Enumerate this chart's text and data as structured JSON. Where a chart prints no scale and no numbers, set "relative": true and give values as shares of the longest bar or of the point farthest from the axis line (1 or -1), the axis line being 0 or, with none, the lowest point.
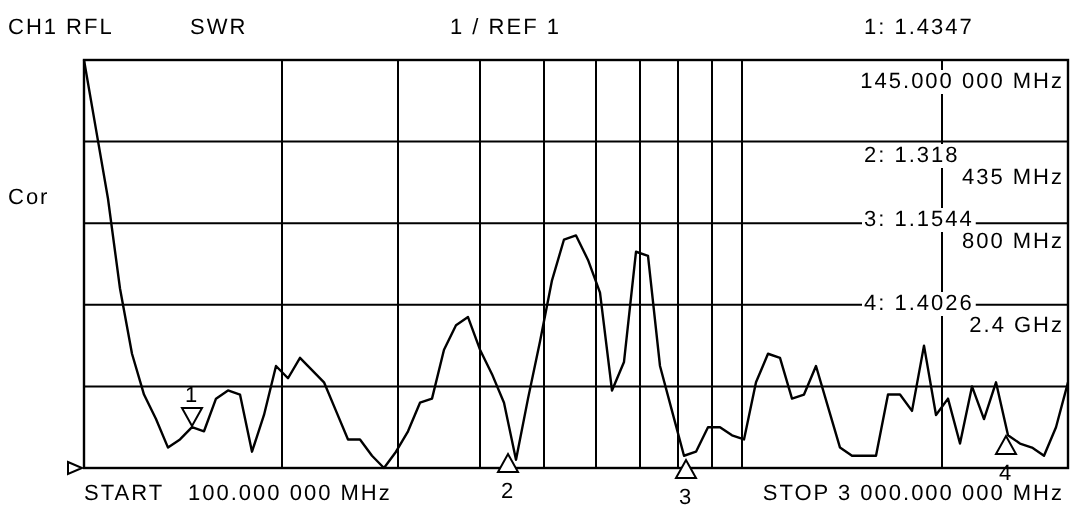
{
  "chart_data": {
    "type": "line",
    "title": "CH1 RFL",
    "subtitle": "SWR",
    "relative": true,
    "grid": true,
    "categories": [
      null,
      null,
      null,
      null,
      null,
      null,
      null,
      null,
      null,
      null,
      null,
      null,
      null,
      null,
      null,
      null,
      null,
      null,
      null,
      null,
      null,
      null,
      null,
      null,
      null,
      null,
      null,
      null,
      null,
      null,
      null,
      null,
      null,
      null,
      null,
      null,
      null,
      null,
      null,
      null,
      null,
      null,
      null,
      null,
      null,
      null,
      null,
      null,
      null,
      null,
      null,
      null,
      null,
      null,
      null,
      null,
      null,
      null,
      null,
      null,
      null,
      null,
      null,
      null,
      null,
      null,
      null,
      null,
      null,
      null,
      null,
      null,
      null,
      null,
      null,
      null,
      null,
      null,
      null,
      null,
      null,
      null,
      null
    ],
    "series": [
      {
        "color": "#000000",
        "values": [
          1.0,
          0.83,
          0.66,
          0.44,
          0.28,
          0.18,
          0.12,
          0.05,
          0.07,
          0.1,
          0.09,
          0.17,
          0.19,
          0.18,
          0.04,
          0.13,
          0.25,
          0.22,
          0.27,
          0.24,
          0.21,
          0.14,
          0.07,
          0.07,
          0.03,
          0.0,
          0.04,
          0.09,
          0.16,
          0.17,
          0.29,
          0.35,
          0.37,
          0.29,
          0.23,
          0.16,
          0.02,
          0.17,
          0.31,
          0.46,
          0.56,
          0.57,
          0.51,
          0.43,
          0.19,
          0.26,
          0.53,
          0.52,
          0.25,
          0.14,
          0.03,
          0.04,
          0.1,
          0.1,
          0.08,
          0.07,
          0.21,
          0.28,
          0.27,
          0.17,
          0.18,
          0.25,
          0.15,
          0.05,
          0.03,
          0.03,
          0.03,
          0.18,
          0.18,
          0.14,
          0.3,
          0.13,
          0.17,
          0.06,
          0.2,
          0.12,
          0.21,
          0.08,
          0.06,
          0.05,
          0.03,
          0.1,
          0.21
        ]
      }
    ],
    "annotations": [
      "1 / REF 1",
      "Cor",
      "1: 1.4347",
      "145.000 000 MHz",
      "2: 1.318",
      "435 MHz",
      "3: 1.1544",
      "800 MHz",
      "4: 1.4026",
      "2.4 GHz",
      "START   100.000 000 MHz",
      "STOP 3 000.000 000 MHz",
      "1",
      "2",
      "3",
      "4"
    ]
  }
}
